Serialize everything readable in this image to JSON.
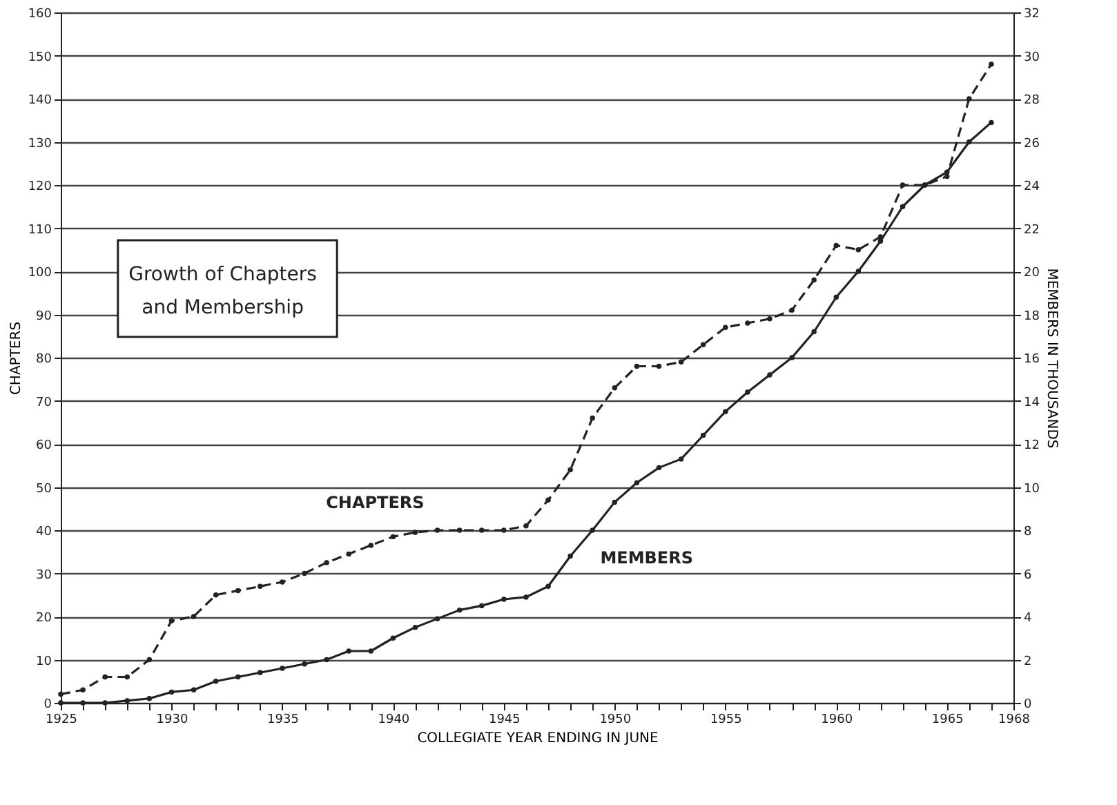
{
  "chart_data": {
    "type": "line",
    "title": "Growth of Chapters\nand Membership",
    "xlabel": "COLLEGIATE YEAR ENDING IN JUNE",
    "ylabel": "CHAPTERS",
    "y2label": "MEMBERS IN THOUSANDS",
    "x": [
      1925,
      1926,
      1927,
      1928,
      1929,
      1930,
      1931,
      1932,
      1933,
      1934,
      1935,
      1936,
      1937,
      1938,
      1939,
      1940,
      1941,
      1942,
      1943,
      1944,
      1945,
      1946,
      1947,
      1948,
      1949,
      1950,
      1951,
      1952,
      1953,
      1954,
      1955,
      1956,
      1957,
      1958,
      1959,
      1960,
      1961,
      1962,
      1963,
      1964,
      1965,
      1966,
      1967
    ],
    "series": [
      {
        "name": "CHAPTERS",
        "color": "#222222",
        "line_style": "dashed",
        "values": [
          2,
          3,
          6,
          6,
          10,
          19,
          20,
          25,
          26,
          27,
          28,
          30,
          32.5,
          34.5,
          36.5,
          38.5,
          39.5,
          40,
          40,
          40,
          40,
          41,
          47,
          54,
          66,
          73,
          78,
          78,
          79,
          83,
          87,
          88,
          89,
          91,
          98,
          106,
          105,
          108,
          120,
          120,
          122,
          140,
          148
        ]
      },
      {
        "name": "MEMBERS",
        "color": "#222222",
        "line_style": "solid",
        "axis": "y2",
        "values": [
          0,
          0,
          0,
          0.1,
          0.2,
          0.5,
          0.6,
          1.0,
          1.2,
          1.4,
          1.6,
          1.8,
          2.0,
          2.4,
          2.4,
          3.0,
          3.5,
          3.9,
          4.3,
          4.5,
          4.8,
          4.9,
          5.4,
          6.8,
          8.0,
          9.3,
          10.2,
          10.9,
          11.3,
          12.4,
          13.5,
          14.4,
          15.2,
          16.0,
          17.2,
          18.8,
          20.0,
          21.4,
          23.0,
          24.0,
          24.6,
          26.0,
          26.9
        ]
      }
    ],
    "xlim": [
      1925,
      1968
    ],
    "xticks": [
      1925,
      {
        "value": 1926,
        "label": null
      },
      {
        "value": 1927,
        "label": null
      },
      {
        "value": 1928,
        "label": null
      },
      {
        "value": 1929,
        "label": null
      },
      1930,
      {
        "value": 1931,
        "label": null
      },
      {
        "value": 1932,
        "label": null
      },
      {
        "value": 1933,
        "label": null
      },
      {
        "value": 1934,
        "label": null
      },
      1935,
      {
        "value": 1936,
        "label": null
      },
      {
        "value": 1937,
        "label": null
      },
      {
        "value": 1938,
        "label": null
      },
      {
        "value": 1939,
        "label": null
      },
      1940,
      {
        "value": 1941,
        "label": null
      },
      {
        "value": 1942,
        "label": null
      },
      {
        "value": 1943,
        "label": null
      },
      {
        "value": 1944,
        "label": null
      },
      1945,
      {
        "value": 1946,
        "label": null
      },
      {
        "value": 1947,
        "label": null
      },
      {
        "value": 1948,
        "label": null
      },
      {
        "value": 1949,
        "label": null
      },
      1950,
      {
        "value": 1951,
        "label": null
      },
      {
        "value": 1952,
        "label": null
      },
      {
        "value": 1953,
        "label": null
      },
      {
        "value": 1954,
        "label": null
      },
      1955,
      {
        "value": 1956,
        "label": null
      },
      {
        "value": 1957,
        "label": null
      },
      {
        "value": 1958,
        "label": null
      },
      {
        "value": 1959,
        "label": null
      },
      1960,
      {
        "value": 1961,
        "label": null
      },
      {
        "value": 1962,
        "label": null
      },
      {
        "value": 1963,
        "label": null
      },
      {
        "value": 1964,
        "label": null
      },
      1965,
      {
        "value": 1966,
        "label": null
      },
      {
        "value": 1967,
        "label": null
      },
      1968
    ],
    "ylim": [
      0,
      160
    ],
    "yticks": [
      0,
      10,
      20,
      30,
      40,
      50,
      60,
      70,
      80,
      90,
      100,
      110,
      120,
      130,
      140,
      150,
      160
    ],
    "y2lim": [
      0,
      32
    ],
    "y2ticks": [
      0,
      2,
      4,
      6,
      8,
      10,
      12,
      14,
      16,
      18,
      20,
      22,
      24,
      26,
      28,
      30,
      32
    ],
    "grid": "y",
    "legend": false,
    "marker": "circle"
  }
}
